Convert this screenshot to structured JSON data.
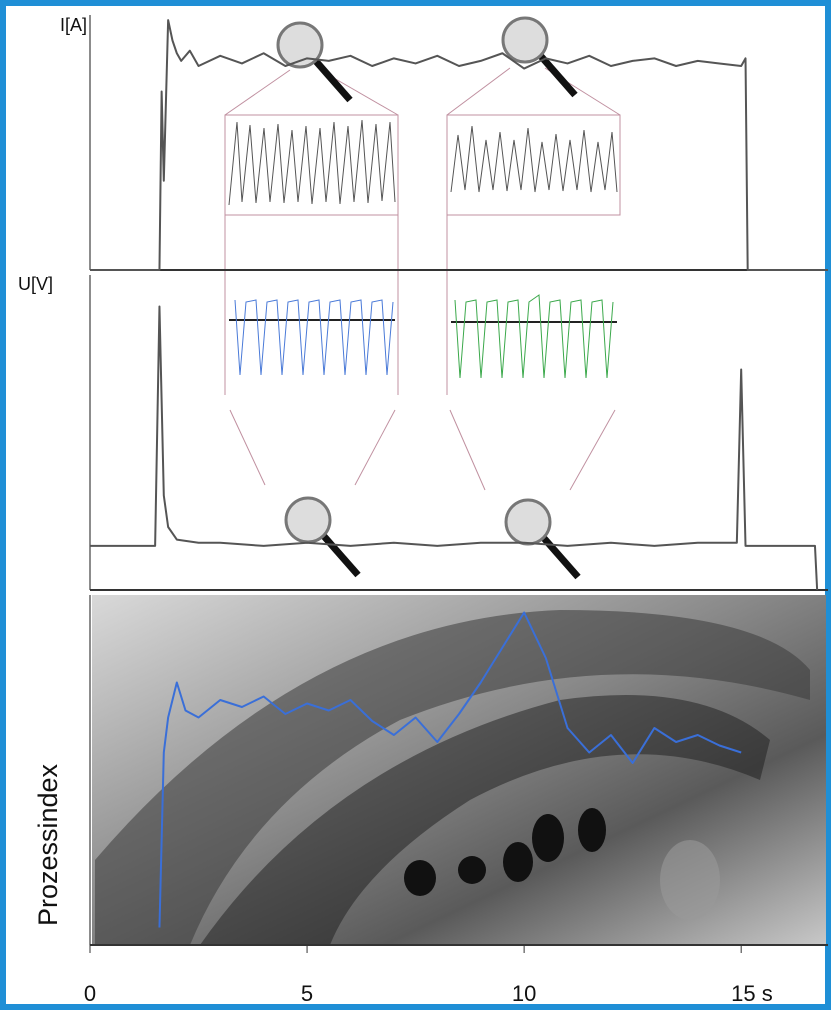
{
  "chart_data": [
    {
      "type": "line",
      "y_label": "I[A]",
      "xlim": [
        0,
        17
      ],
      "ylim": [
        0,
        1
      ],
      "x": [
        0,
        1.6,
        1.65,
        1.7,
        1.8,
        1.9,
        2.0,
        2.1,
        2.3,
        2.5,
        3,
        3.5,
        4,
        4.5,
        5,
        5.5,
        6,
        6.5,
        7,
        7.5,
        8,
        8.5,
        9,
        9.5,
        10,
        10.5,
        11,
        11.5,
        12,
        12.5,
        13,
        13.5,
        14,
        14.5,
        15,
        15.1,
        15.15,
        17
      ],
      "series": [
        {
          "color": "#555555",
          "values": [
            0,
            0,
            0.7,
            0.35,
            0.98,
            0.9,
            0.85,
            0.82,
            0.86,
            0.8,
            0.84,
            0.81,
            0.85,
            0.8,
            0.83,
            0.82,
            0.84,
            0.8,
            0.83,
            0.81,
            0.84,
            0.8,
            0.82,
            0.85,
            0.79,
            0.83,
            0.81,
            0.84,
            0.8,
            0.82,
            0.83,
            0.8,
            0.82,
            0.81,
            0.8,
            0.83,
            0,
            0
          ]
        }
      ]
    },
    {
      "type": "line",
      "y_label": "U[V]",
      "xlim": [
        0,
        17
      ],
      "ylim": [
        0,
        1
      ],
      "x": [
        0,
        1.5,
        1.6,
        1.7,
        1.8,
        2,
        2.5,
        3,
        4,
        5,
        6,
        7,
        8,
        9,
        10,
        11,
        12,
        13,
        14,
        14.9,
        15,
        15.1,
        16,
        16.7,
        16.75
      ],
      "series": [
        {
          "color": "#555555",
          "values": [
            0.14,
            0.14,
            0.9,
            0.3,
            0.2,
            0.16,
            0.15,
            0.15,
            0.14,
            0.15,
            0.14,
            0.15,
            0.14,
            0.15,
            0.15,
            0.14,
            0.15,
            0.14,
            0.15,
            0.15,
            0.7,
            0.14,
            0.14,
            0.14,
            0
          ]
        }
      ]
    },
    {
      "type": "line",
      "y_label": "Prozessindex",
      "xlim": [
        0,
        17
      ],
      "ylim": [
        0,
        1
      ],
      "xticks": [
        0,
        5,
        10,
        {
          "value": 15,
          "label": "15 s"
        }
      ],
      "x": [
        1.6,
        1.7,
        1.8,
        2,
        2.2,
        2.5,
        3,
        3.5,
        4,
        4.5,
        5,
        5.5,
        6,
        6.5,
        7,
        7.5,
        8,
        8.5,
        9,
        9.5,
        10,
        10.5,
        11,
        11.5,
        12,
        12.5,
        13,
        13.5,
        14,
        14.5,
        15
      ],
      "series": [
        {
          "color": "#3a6fd8",
          "values": [
            0.05,
            0.55,
            0.65,
            0.75,
            0.67,
            0.65,
            0.7,
            0.68,
            0.71,
            0.66,
            0.69,
            0.67,
            0.7,
            0.64,
            0.6,
            0.65,
            0.58,
            0.66,
            0.75,
            0.85,
            0.95,
            0.82,
            0.62,
            0.55,
            0.6,
            0.52,
            0.62,
            0.58,
            0.6,
            0.57,
            0.55
          ]
        }
      ]
    }
  ]
}
